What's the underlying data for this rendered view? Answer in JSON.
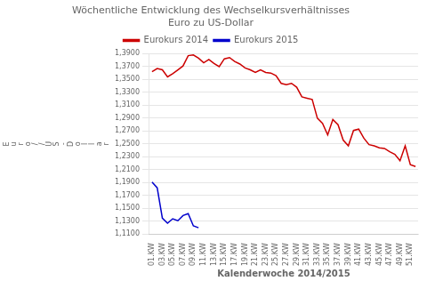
{
  "chart_data": {
    "type": "line",
    "title": "Wöchentliche Entwicklung des Wechselkursverhältnisses\nEuro zu US-Dollar",
    "x_label": "Kalenderwoche 2014/2015",
    "y_label": "Euro//US-Dollar",
    "categories": [
      "01.KW",
      null,
      "03.KW",
      null,
      "05.KW",
      null,
      "07.KW",
      null,
      "09.KW",
      null,
      "11.KW",
      null,
      "13.KW",
      null,
      "15.KW",
      null,
      "17.KW",
      null,
      "19.KW",
      null,
      "21.KW",
      null,
      "23.KW",
      null,
      "25.KW",
      null,
      "27.KW",
      null,
      "29.KW",
      null,
      "31.KW",
      null,
      "33.KW",
      null,
      "35.KW",
      null,
      "37.KW",
      null,
      "39.KW",
      null,
      "41.KW",
      null,
      "43.KW",
      null,
      "45.KW",
      null,
      "47.KW",
      null,
      "49.KW",
      null,
      "51.KW",
      null
    ],
    "series": [
      {
        "name": "Eurokurs 2014",
        "color": "#CC0000",
        "values": [
          1.362,
          1.367,
          1.365,
          1.354,
          1.359,
          1.365,
          1.371,
          1.387,
          1.388,
          1.383,
          1.376,
          1.381,
          1.375,
          1.37,
          1.382,
          1.384,
          1.378,
          1.374,
          1.368,
          1.365,
          1.361,
          1.365,
          1.361,
          1.36,
          1.356,
          1.344,
          1.342,
          1.344,
          1.338,
          1.323,
          1.321,
          1.319,
          1.29,
          1.282,
          1.264,
          1.288,
          1.28,
          1.256,
          1.247,
          1.271,
          1.273,
          1.259,
          1.249,
          1.247,
          1.244,
          1.243,
          1.238,
          1.234,
          1.224,
          1.247,
          1.218,
          1.215
        ]
      },
      {
        "name": "Eurokurs 2015",
        "color": "#0000CC",
        "values": [
          1.191,
          1.182,
          1.135,
          1.127,
          1.134,
          1.131,
          1.139,
          1.142,
          1.123,
          1.12,
          null,
          null,
          null,
          null,
          null,
          null,
          null,
          null,
          null,
          null,
          null,
          null,
          null,
          null,
          null,
          null,
          null,
          null,
          null,
          null,
          null,
          null,
          null,
          null,
          null,
          null,
          null,
          null,
          null,
          null,
          null,
          null,
          null,
          null,
          null,
          null,
          null,
          null,
          null,
          null,
          null,
          null
        ]
      }
    ],
    "ylim": [
      1.11,
      1.39
    ],
    "yticks": [
      {
        "value": 1.11,
        "label": "1,1100"
      },
      {
        "value": 1.13,
        "label": "1,1300"
      },
      {
        "value": 1.15,
        "label": "1,1500"
      },
      {
        "value": 1.17,
        "label": "1,1700"
      },
      {
        "value": 1.19,
        "label": "1,1900"
      },
      {
        "value": 1.21,
        "label": "1,2100"
      },
      {
        "value": 1.23,
        "label": "1,2300"
      },
      {
        "value": 1.25,
        "label": "1,2500"
      },
      {
        "value": 1.27,
        "label": "1,2700"
      },
      {
        "value": 1.29,
        "label": "1,2900"
      },
      {
        "value": 1.31,
        "label": "1,3100"
      },
      {
        "value": 1.33,
        "label": "1,3300"
      },
      {
        "value": 1.35,
        "label": "1,3500"
      },
      {
        "value": 1.37,
        "label": "1,3700"
      },
      {
        "value": 1.39,
        "label": "1,3900"
      }
    ],
    "grid": "y",
    "legend": "top"
  }
}
